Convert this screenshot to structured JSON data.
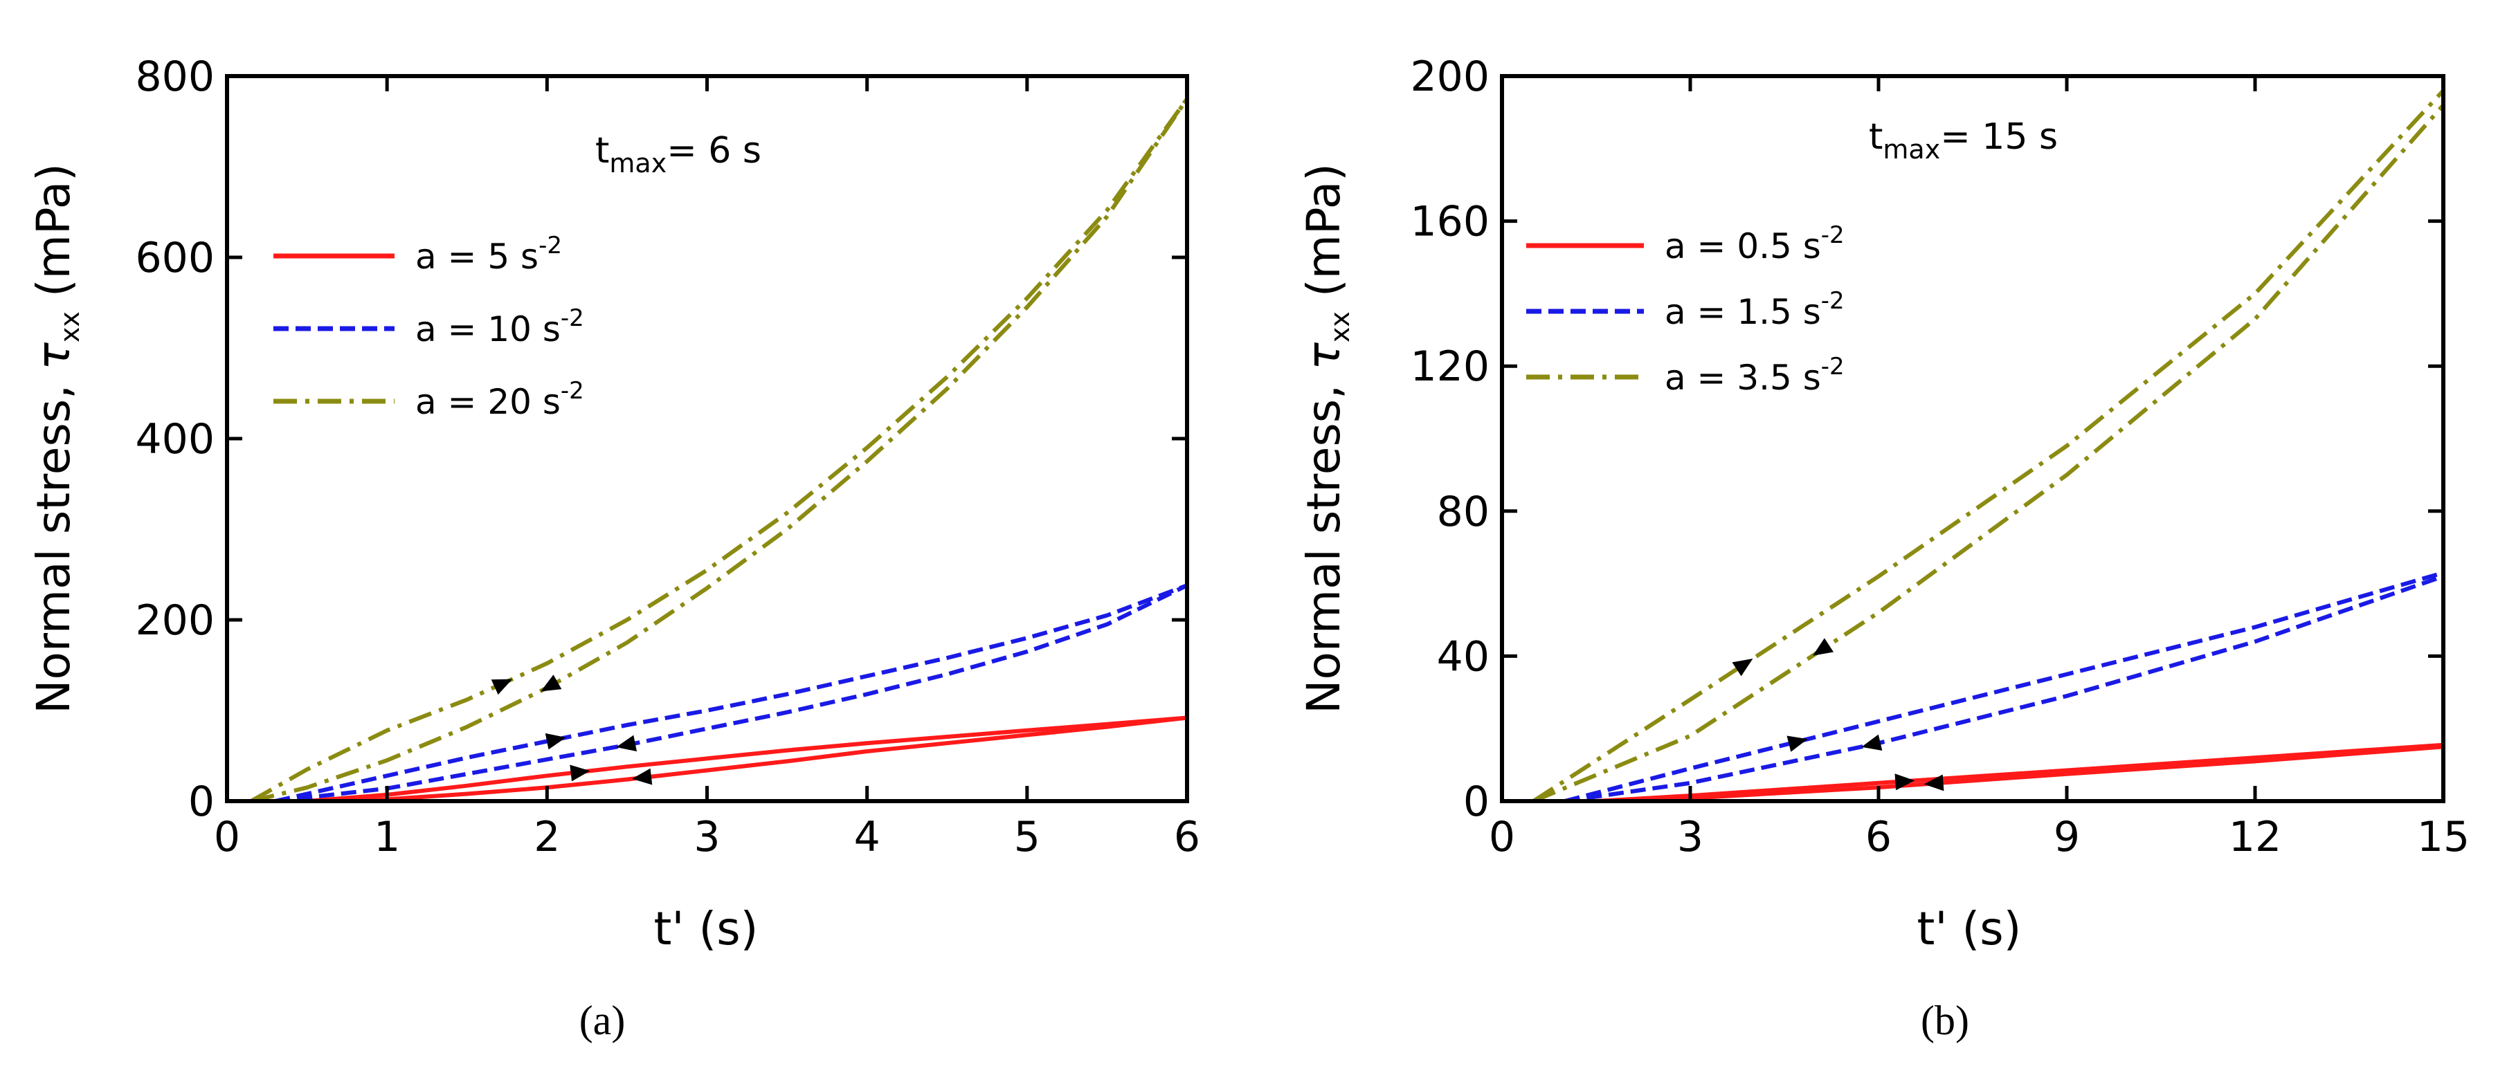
{
  "colors": {
    "red": "#ff1a1a",
    "blue": "#1a1ae6",
    "olive": "#8b8b12"
  },
  "chart_data": [
    {
      "type": "line",
      "panel_label": "(a)",
      "annotation": {
        "main": "t",
        "sub": "max",
        "rest": "= 6 s"
      },
      "xlabel": "t' (s)",
      "ylabel": {
        "pre": "Normal stress, ",
        "sym": "τ",
        "sub": "xx",
        "post": " (mPa)"
      },
      "xlim": [
        0,
        6
      ],
      "ylim": [
        0,
        800
      ],
      "xticks": [
        "0",
        "1",
        "2",
        "3",
        "4",
        "5",
        "6"
      ],
      "yticks": [
        "0",
        "200",
        "400",
        "600",
        "800"
      ],
      "series": [
        {
          "name": "a = 5 s-2",
          "label_pre": "a =  5  s",
          "label_sup": "-2",
          "color": "red",
          "style": "solid",
          "x": [
            0.5,
            1,
            1.5,
            2,
            2.5,
            3,
            3.5,
            4,
            4.5,
            5,
            5.5,
            6
          ],
          "up": [
            0,
            7,
            17,
            28,
            38,
            47,
            56,
            64,
            71,
            78,
            85,
            92
          ],
          "down": [
            0,
            2,
            8,
            15,
            24,
            34,
            44,
            55,
            64,
            73,
            82,
            92
          ],
          "arrow_up": 2.2,
          "arrow_down": 2.6
        },
        {
          "name": "a = 10 s-2",
          "label_pre": "a = 10  s",
          "label_sup": "-2",
          "color": "blue",
          "style": "dashed",
          "x": [
            0.3,
            1,
            1.5,
            2,
            2.5,
            3,
            3.5,
            4,
            4.5,
            5,
            5.5,
            6
          ],
          "up": [
            0,
            28,
            48,
            66,
            84,
            100,
            118,
            138,
            158,
            180,
            205,
            238
          ],
          "down": [
            0,
            14,
            30,
            46,
            62,
            80,
            98,
            118,
            140,
            165,
            195,
            238
          ],
          "arrow_up": 2.05,
          "arrow_down": 2.5
        },
        {
          "name": "a = 20 s-2",
          "label_pre": "a = 20  s",
          "label_sup": "-2",
          "color": "olive",
          "style": "dashdot",
          "x": [
            0.15,
            0.5,
            1,
            1.5,
            2,
            2.5,
            3,
            3.5,
            4,
            4.5,
            5,
            5.5,
            6
          ],
          "up": [
            0,
            35,
            78,
            112,
            152,
            200,
            255,
            318,
            390,
            468,
            555,
            652,
            775
          ],
          "down": [
            0,
            15,
            45,
            82,
            125,
            175,
            235,
            300,
            375,
            455,
            545,
            645,
            775
          ],
          "arrow_up": 1.72,
          "arrow_down": 2.02
        }
      ]
    },
    {
      "type": "line",
      "panel_label": "(b)",
      "annotation": {
        "main": "t",
        "sub": "max",
        "rest": "= 15 s"
      },
      "xlabel": "t' (s)",
      "ylabel": {
        "pre": "Normal stress, ",
        "sym": "τ",
        "sub": "xx",
        "post": " (mPa)"
      },
      "xlim": [
        0,
        15
      ],
      "ylim": [
        0,
        200
      ],
      "xticks": [
        "0",
        "3",
        "6",
        "9",
        "12",
        "15"
      ],
      "yticks": [
        "0",
        "40",
        "80",
        "120",
        "160",
        "200"
      ],
      "series": [
        {
          "name": "a = 0.5 s-2",
          "label_pre": "a = 0.5 s",
          "label_sup": "-2",
          "color": "red",
          "style": "solid",
          "x": [
            1.5,
            3,
            6,
            9,
            12,
            15
          ],
          "up": [
            0,
            1.5,
            5,
            8.5,
            12,
            15.5
          ],
          "down": [
            0,
            0.8,
            3.8,
            7.5,
            11,
            15
          ],
          "arrow_up": 6.4,
          "arrow_down": 6.9
        },
        {
          "name": "a = 1.5 s-2",
          "label_pre": "a = 1.5 s",
          "label_sup": "-2",
          "color": "blue",
          "style": "dashed",
          "x": [
            1,
            3,
            6,
            9,
            12,
            15
          ],
          "up": [
            0,
            9,
            22,
            35,
            48,
            63
          ],
          "down": [
            0,
            5,
            16,
            29,
            44,
            62
          ],
          "arrow_up": 4.7,
          "arrow_down": 5.9
        },
        {
          "name": "a = 3.5 s-2",
          "label_pre": "a = 3.5 s",
          "label_sup": "-2",
          "color": "olive",
          "style": "dashdot",
          "x": [
            0.5,
            3,
            6,
            9,
            12,
            15
          ],
          "up": [
            0,
            28,
            62,
            98,
            140,
            196
          ],
          "down": [
            0,
            18,
            52,
            90,
            133,
            192
          ],
          "arrow_up": 3.85,
          "arrow_down": 5.1
        }
      ]
    }
  ]
}
